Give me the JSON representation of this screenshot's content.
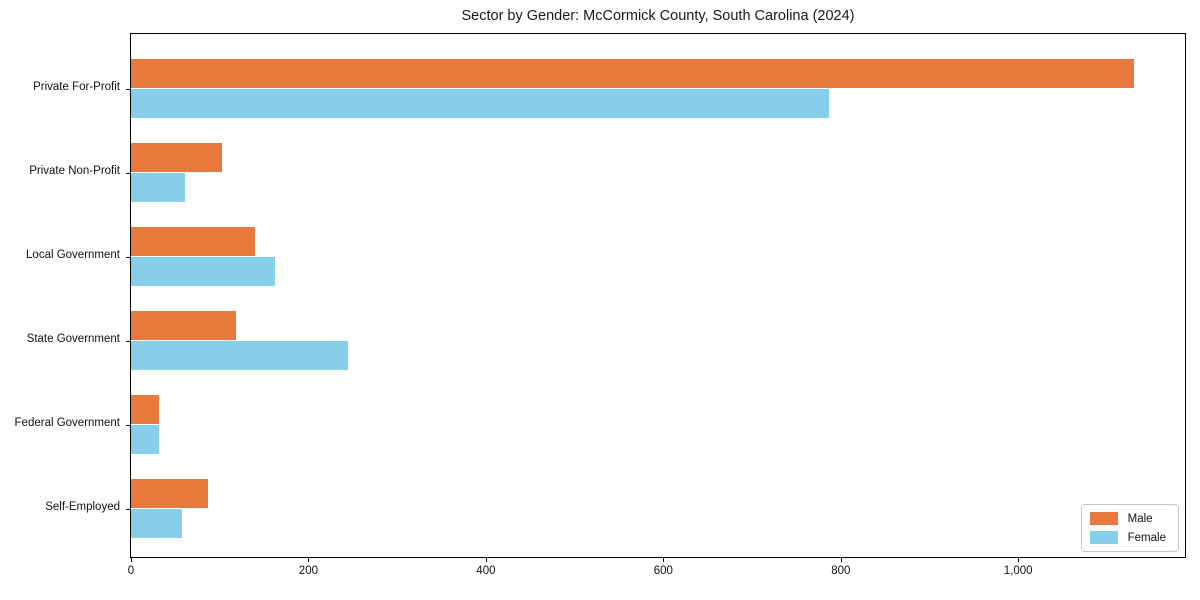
{
  "chart_data": {
    "type": "bar",
    "orientation": "horizontal",
    "title": "Sector by Gender: McCormick County, South Carolina (2024)",
    "categories": [
      "Private For-Profit",
      "Private Non-Profit",
      "Local Government",
      "State Government",
      "Federal Government",
      "Self-Employed"
    ],
    "series": [
      {
        "name": "Male",
        "color": "#E8793C",
        "values": [
          1130,
          102,
          140,
          118,
          32,
          87
        ]
      },
      {
        "name": "Female",
        "color": "#87CEEB",
        "values": [
          787,
          61,
          162,
          244,
          32,
          57
        ]
      }
    ],
    "xlabel": "",
    "ylabel": "",
    "xlim": [
      0,
      1188
    ],
    "x_ticks": [
      0,
      200,
      400,
      600,
      800,
      1000
    ],
    "x_tick_labels": [
      "0",
      "200",
      "400",
      "600",
      "800",
      "1,000"
    ],
    "grid": false,
    "legend_position": "lower right",
    "background_color": "#ffffff",
    "axis_color": "#000000"
  }
}
